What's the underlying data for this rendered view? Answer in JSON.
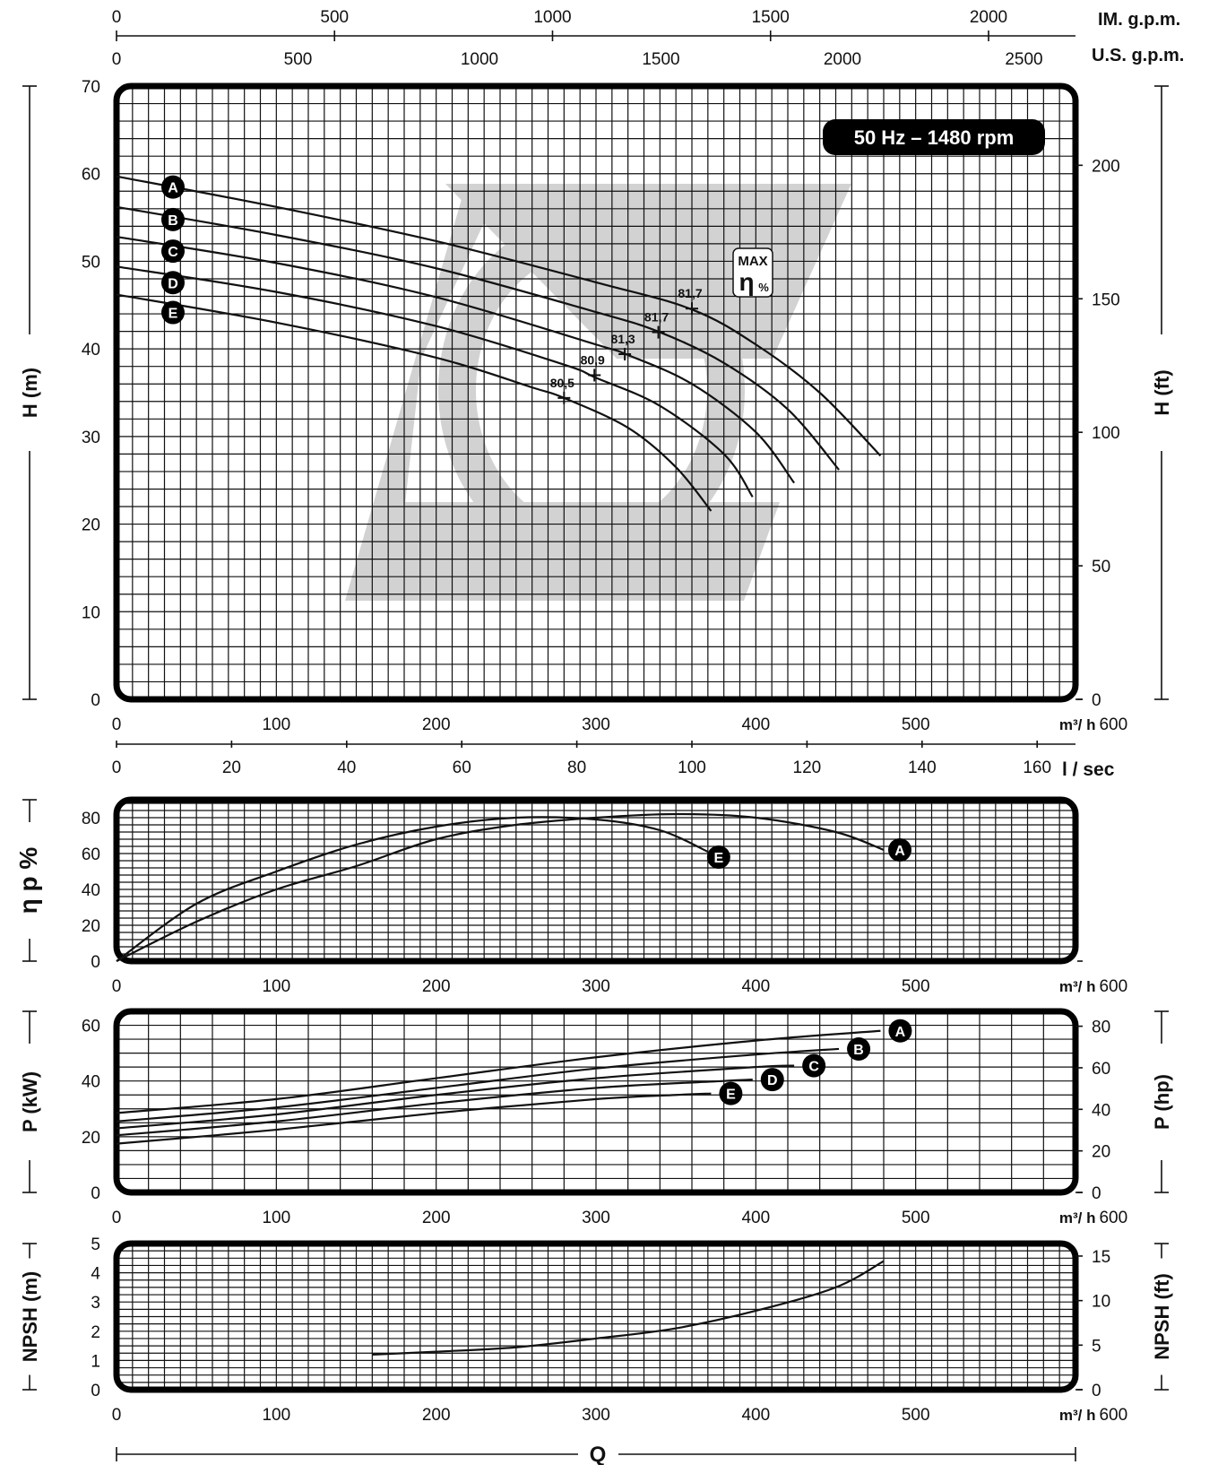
{
  "chart_data": [
    {
      "type": "line",
      "title": "",
      "info_box": "50 Hz – 1480 rpm",
      "xlabel": "m³/ h",
      "ylabel": "H  (m)",
      "ylabel_right": "H  (ft)",
      "xlim": [
        0,
        600
      ],
      "ylim": [
        0,
        70
      ],
      "x_ticks": [
        0,
        100,
        200,
        300,
        400,
        500,
        600
      ],
      "y_ticks": [
        0,
        10,
        20,
        30,
        40,
        50,
        60,
        70
      ],
      "y_ticks_right": [
        0,
        50,
        100,
        150,
        200
      ],
      "top_axis_im_gpm": {
        "label": "IM. g.p.m.",
        "ticks": [
          0,
          500,
          1000,
          1500,
          2000
        ]
      },
      "top_axis_us_gpm": {
        "label": "U.S. g.p.m.",
        "ticks": [
          0,
          500,
          1000,
          1500,
          2000,
          2500
        ]
      },
      "bottom_axis_lsec": {
        "label": "l / sec",
        "ticks": [
          0,
          20,
          40,
          60,
          80,
          100,
          120,
          140,
          160
        ]
      },
      "max_eff_label_top": "MAX",
      "max_eff_label_symbol": "η",
      "max_eff_label_unit": "%",
      "grid": true,
      "series": [
        {
          "name": "A",
          "x": [
            0,
            100,
            200,
            300,
            360,
            400,
            440,
            478
          ],
          "y": [
            59.7,
            56.2,
            52.3,
            47.6,
            44.5,
            40.5,
            35.0,
            27.8
          ]
        },
        {
          "name": "B",
          "x": [
            0,
            100,
            200,
            300,
            340,
            380,
            420,
            452
          ],
          "y": [
            56.2,
            53.0,
            49.2,
            44.2,
            41.9,
            38.4,
            33.1,
            26.2
          ]
        },
        {
          "name": "C",
          "x": [
            0,
            100,
            200,
            300,
            320,
            360,
            400,
            424
          ],
          "y": [
            52.8,
            49.8,
            45.9,
            40.5,
            39.3,
            36.0,
            30.5,
            24.7
          ]
        },
        {
          "name": "D",
          "x": [
            0,
            100,
            200,
            280,
            300,
            340,
            380,
            398
          ],
          "y": [
            49.4,
            46.5,
            42.6,
            38.2,
            36.7,
            33.5,
            28.0,
            23.1
          ]
        },
        {
          "name": "E",
          "x": [
            0,
            100,
            200,
            260,
            280,
            320,
            350,
            372
          ],
          "y": [
            46.2,
            43.0,
            39.0,
            35.6,
            34.4,
            31.0,
            26.5,
            21.5
          ]
        }
      ],
      "annotations": [
        {
          "text": "81,7",
          "x": 360,
          "y": 44.6,
          "series": "A"
        },
        {
          "text": "81,7",
          "x": 339,
          "y": 41.9,
          "series": "B"
        },
        {
          "text": "81,3",
          "x": 318,
          "y": 39.4,
          "series": "C"
        },
        {
          "text": "80,9",
          "x": 299,
          "y": 37.0,
          "series": "D"
        },
        {
          "text": "80,5",
          "x": 280,
          "y": 34.4,
          "series": "E"
        }
      ]
    },
    {
      "type": "line",
      "xlabel": "m³/ h",
      "ylabel": "η p %",
      "xlim": [
        0,
        600
      ],
      "ylim": [
        0,
        90
      ],
      "x_ticks": [
        0,
        100,
        200,
        300,
        400,
        500,
        600
      ],
      "y_ticks": [
        0,
        20,
        40,
        60,
        80
      ],
      "grid": true,
      "series": [
        {
          "name": "A",
          "x": [
            0,
            50,
            100,
            150,
            200,
            250,
            300,
            350,
            400,
            450,
            480
          ],
          "y": [
            0,
            22,
            40,
            53,
            68,
            76,
            80,
            82,
            80,
            72,
            62
          ]
        },
        {
          "name": "E",
          "x": [
            0,
            50,
            100,
            150,
            200,
            250,
            300,
            340,
            370
          ],
          "y": [
            0,
            32,
            50,
            65,
            75,
            80,
            79,
            73,
            61
          ]
        }
      ]
    },
    {
      "type": "line",
      "xlabel": "m³/ h",
      "ylabel": "P (kW)",
      "ylabel_right": "P (hp)",
      "xlim": [
        0,
        600
      ],
      "ylim": [
        0,
        65
      ],
      "x_ticks": [
        0,
        100,
        200,
        300,
        400,
        500,
        600
      ],
      "y_ticks": [
        0,
        20,
        40,
        60
      ],
      "y_ticks_right": [
        0,
        20,
        40,
        60,
        80
      ],
      "grid": true,
      "series": [
        {
          "name": "A",
          "x": [
            0,
            100,
            200,
            300,
            400,
            478
          ],
          "y": [
            28.5,
            33.5,
            41.0,
            48.5,
            54.5,
            58.0
          ]
        },
        {
          "name": "B",
          "x": [
            0,
            100,
            200,
            300,
            400,
            452
          ],
          "y": [
            25.5,
            30.5,
            37.5,
            44.5,
            49.5,
            51.5
          ]
        },
        {
          "name": "C",
          "x": [
            0,
            100,
            200,
            300,
            400,
            424
          ],
          "y": [
            23.0,
            28.0,
            35.0,
            41.0,
            45.0,
            45.5
          ]
        },
        {
          "name": "D",
          "x": [
            0,
            100,
            200,
            300,
            380,
            398
          ],
          "y": [
            20.5,
            25.5,
            32.0,
            37.5,
            40.0,
            40.5
          ]
        },
        {
          "name": "E",
          "x": [
            0,
            100,
            200,
            300,
            350,
            372
          ],
          "y": [
            17.5,
            22.5,
            28.5,
            33.5,
            35.0,
            35.5
          ]
        }
      ]
    },
    {
      "type": "line",
      "xlabel": "m³/ h",
      "ylabel": "NPSH (m)",
      "ylabel_right": "NPSH (ft)",
      "xlim": [
        0,
        600
      ],
      "ylim": [
        0,
        5
      ],
      "x_ticks": [
        0,
        100,
        200,
        300,
        400,
        500,
        600
      ],
      "y_ticks": [
        0,
        1,
        2,
        3,
        4,
        5
      ],
      "y_ticks_right": [
        0,
        5,
        10,
        15
      ],
      "grid": true,
      "series": [
        {
          "name": "",
          "x": [
            160,
            200,
            250,
            300,
            350,
            400,
            450,
            480
          ],
          "y": [
            1.2,
            1.3,
            1.45,
            1.75,
            2.1,
            2.7,
            3.5,
            4.4
          ]
        }
      ]
    }
  ],
  "bottom_label": "Q"
}
